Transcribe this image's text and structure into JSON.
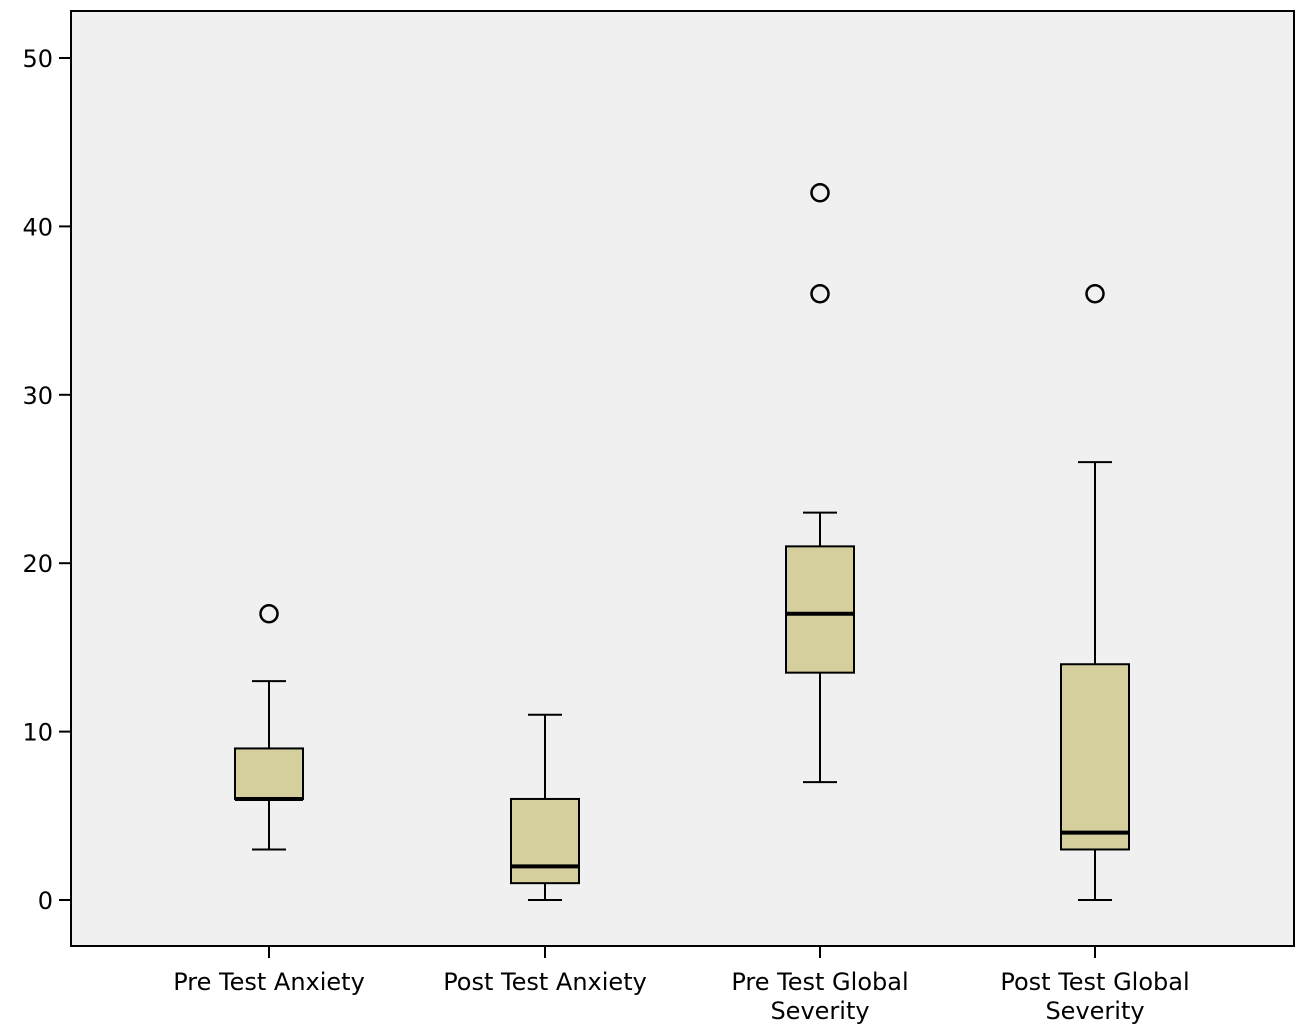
{
  "chart_data": {
    "type": "box",
    "title": "",
    "xlabel": "",
    "ylabel": "",
    "ylim": [
      -3,
      53
    ],
    "yticks": [
      0,
      10,
      20,
      30,
      40,
      50
    ],
    "grid": false,
    "box_color": "#d4cf9d",
    "background_color": "#f0f0f0",
    "categories": [
      [
        "Pre Test Anxiety"
      ],
      [
        "Post Test Anxiety"
      ],
      [
        "Pre Test Global",
        "Severity"
      ],
      [
        "Post Test Global",
        "Severity"
      ]
    ],
    "series": [
      {
        "whisker_low": 3,
        "q1": 6,
        "median": 6,
        "q3": 9,
        "whisker_high": 13,
        "outliers": [
          17
        ]
      },
      {
        "whisker_low": 0,
        "q1": 1,
        "median": 2,
        "q3": 6,
        "whisker_high": 11,
        "outliers": []
      },
      {
        "whisker_low": 7,
        "q1": 13.5,
        "median": 17,
        "q3": 21,
        "whisker_high": 23,
        "outliers": [
          36,
          42
        ]
      },
      {
        "whisker_low": 0,
        "q1": 3,
        "median": 4,
        "q3": 14,
        "whisker_high": 26,
        "outliers": [
          36
        ]
      }
    ]
  }
}
